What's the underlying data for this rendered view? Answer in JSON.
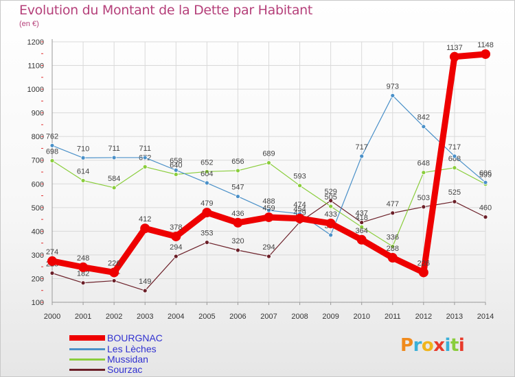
{
  "title": "Evolution du Montant de la Dette par Habitant",
  "unit": "(en €)",
  "logo": "Proxiti",
  "chart_data": {
    "type": "line",
    "x": [
      "2000",
      "2001",
      "2002",
      "2003",
      "2004",
      "2005",
      "2006",
      "2007",
      "2008",
      "2009",
      "2010",
      "2011",
      "2012",
      "2013",
      "2014"
    ],
    "ylim": [
      100,
      1200
    ],
    "yticks": [
      100,
      200,
      300,
      400,
      500,
      600,
      700,
      800,
      900,
      1000,
      1100,
      1200
    ],
    "grid": true,
    "legend_position": "bottom-left",
    "series": [
      {
        "name": "BOURGNAC",
        "color": "#ee0000",
        "values": [
          274,
          248,
          226,
          412,
          378,
          479,
          436,
          459,
          454,
          433,
          364,
          288,
          226,
          1137,
          1148
        ]
      },
      {
        "name": "Les Lèches",
        "color": "#4a90c8",
        "values": [
          762,
          710,
          711,
          711,
          658,
          604,
          547,
          488,
          474,
          384,
          717,
          973,
          842,
          717,
          606
        ]
      },
      {
        "name": "Mussidan",
        "color": "#8acd3c",
        "values": [
          698,
          614,
          584,
          672,
          640,
          652,
          656,
          689,
          593,
          505,
          418,
          336,
          648,
          668,
          599
        ]
      },
      {
        "name": "Sourzac",
        "color": "#6b1f28",
        "values": [
          223,
          182,
          191,
          149,
          294,
          353,
          320,
          294,
          439,
          529,
          437,
          477,
          503,
          525,
          460
        ]
      }
    ]
  }
}
